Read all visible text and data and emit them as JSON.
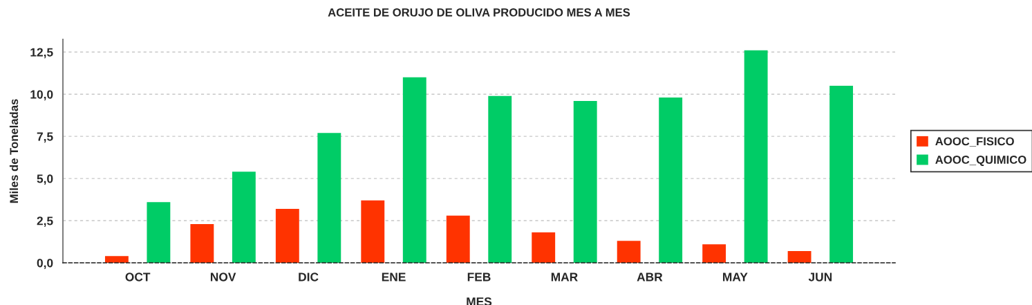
{
  "chart_data": {
    "type": "bar",
    "title": "ACEITE DE ORUJO DE OLIVA PRODUCIDO MES A MES",
    "xlabel": "MES",
    "ylabel": "Miles de Toneladas",
    "categories": [
      "OCT",
      "NOV",
      "DIC",
      "ENE",
      "FEB",
      "MAR",
      "ABR",
      "MAY",
      "JUN"
    ],
    "series": [
      {
        "name": "AOOC_FISICO",
        "color": "#ff3300",
        "values": [
          0.4,
          2.3,
          3.2,
          3.7,
          2.8,
          1.8,
          1.3,
          1.1,
          0.7
        ]
      },
      {
        "name": "AOOC_QUIMICO",
        "color": "#00cc66",
        "values": [
          3.6,
          5.4,
          7.7,
          11.0,
          9.9,
          9.6,
          9.8,
          12.6,
          10.5
        ]
      }
    ],
    "ylim": [
      0,
      13.25
    ],
    "yticks": [
      {
        "value": 0,
        "label": "0,0"
      },
      {
        "value": 2.5,
        "label": "2,5"
      },
      {
        "value": 5,
        "label": "5,0"
      },
      {
        "value": 7.5,
        "label": "7,5"
      },
      {
        "value": 10,
        "label": "10,0"
      },
      {
        "value": 12.5,
        "label": "12,5"
      }
    ],
    "grid": "y",
    "legend": "right"
  }
}
